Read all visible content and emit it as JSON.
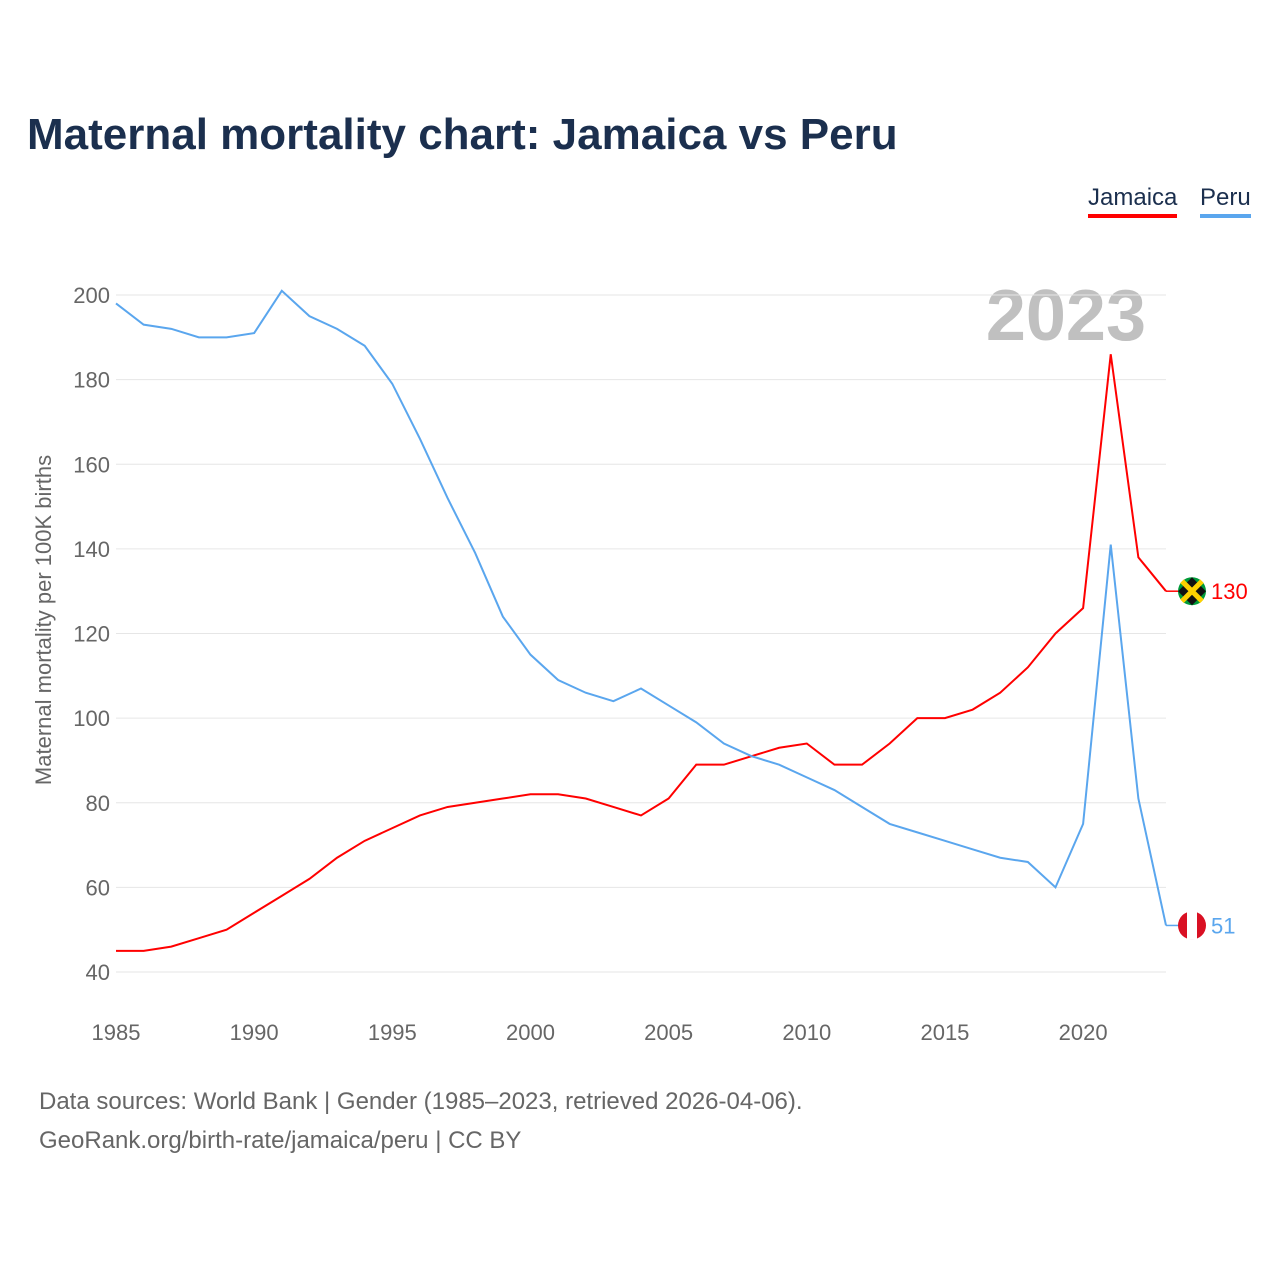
{
  "chart_data": {
    "type": "line",
    "title": "Maternal mortality chart: Jamaica vs Peru",
    "ylabel": "Maternal mortality per 100K births",
    "xlabel": "",
    "xlim": [
      1985,
      2023
    ],
    "ylim": [
      40,
      200
    ],
    "xticks": [
      "1985",
      "1990",
      "1995",
      "2000",
      "2005",
      "2010",
      "2015",
      "2020"
    ],
    "yticks": [
      "40",
      "60",
      "80",
      "100",
      "120",
      "140",
      "160",
      "180",
      "200"
    ],
    "year_label": "2023",
    "grid": true,
    "legend_position": "top-right",
    "x": [
      1985,
      1986,
      1987,
      1988,
      1989,
      1990,
      1991,
      1992,
      1993,
      1994,
      1995,
      1996,
      1997,
      1998,
      1999,
      2000,
      2001,
      2002,
      2003,
      2004,
      2005,
      2006,
      2007,
      2008,
      2009,
      2010,
      2011,
      2012,
      2013,
      2014,
      2015,
      2016,
      2017,
      2018,
      2019,
      2020,
      2021,
      2022,
      2023
    ],
    "series": [
      {
        "name": "Jamaica",
        "color": "#ff0000",
        "end_label": "130",
        "values": [
          45,
          45,
          46,
          48,
          50,
          54,
          58,
          62,
          67,
          71,
          74,
          77,
          79,
          80,
          81,
          82,
          82,
          81,
          79,
          77,
          81,
          89,
          89,
          91,
          93,
          94,
          89,
          89,
          94,
          100,
          100,
          102,
          106,
          112,
          120,
          126,
          186,
          138,
          130
        ]
      },
      {
        "name": "Peru",
        "color": "#5aa6ee",
        "end_label": "51",
        "values": [
          198,
          193,
          192,
          190,
          190,
          191,
          201,
          195,
          192,
          188,
          179,
          166,
          152,
          139,
          124,
          115,
          109,
          106,
          104,
          107,
          103,
          99,
          94,
          91,
          89,
          86,
          83,
          79,
          75,
          73,
          71,
          69,
          67,
          66,
          60,
          75,
          141,
          81,
          51
        ]
      }
    ]
  },
  "footer": {
    "line1": "Data sources: World Bank | Gender (1985–2023, retrieved 2026-04-06).",
    "line2": "GeoRank.org/birth-rate/jamaica/peru | CC BY"
  }
}
